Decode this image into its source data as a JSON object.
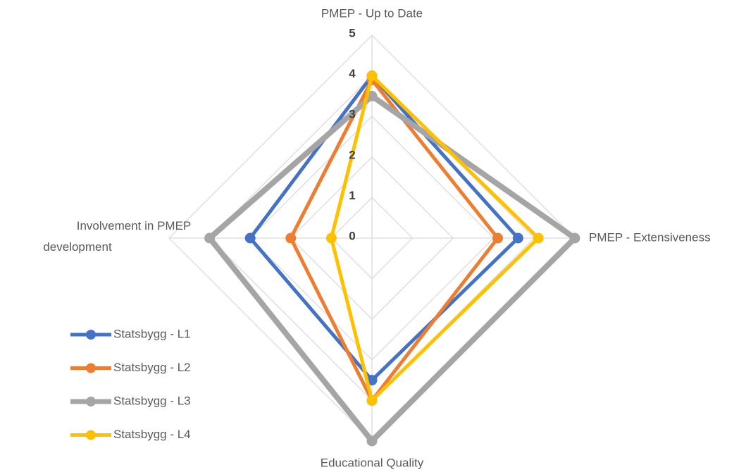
{
  "chart_data": {
    "type": "radar",
    "categories": [
      "PMEP - Up to Date",
      "PMEP - Extensiveness",
      "Educational Quality",
      "Involvement in PMEP development"
    ],
    "series": [
      {
        "name": "Statsbygg - L1",
        "color": "#4472c4",
        "values": [
          4,
          3.6,
          3.5,
          3
        ]
      },
      {
        "name": "Statsbygg - L2",
        "color": "#ed7d31",
        "values": [
          3.9,
          3.1,
          4,
          2
        ]
      },
      {
        "name": "Statsbygg - L3",
        "color": "#a5a5a5",
        "values": [
          3.5,
          5,
          5,
          4
        ]
      },
      {
        "name": "Statsbygg - L4",
        "color": "#ffc000",
        "values": [
          4,
          4.1,
          4,
          1
        ]
      }
    ],
    "ylim": [
      0,
      5
    ],
    "yticks": [
      0,
      1,
      2,
      3,
      4,
      5
    ],
    "grid": true,
    "legend": "lower left"
  }
}
